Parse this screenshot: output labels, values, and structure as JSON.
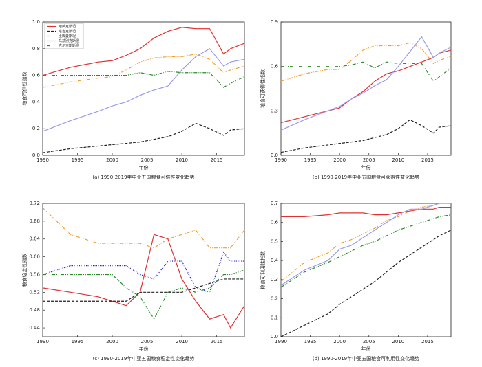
{
  "chart_data": [
    {
      "type": "line",
      "title": "(a) 1990-2019年中亚五国粮食可供性变化趋势",
      "xlabel": "年份",
      "ylabel": "粮食可供性指数",
      "legend": "upper left",
      "x": [
        1990,
        1994,
        1998,
        2000,
        2002,
        2004,
        2006,
        2008,
        2010,
        2012,
        2014,
        2016,
        2017,
        2019
      ],
      "xlim": [
        1990,
        2019
      ],
      "xticks": [
        1990,
        1995,
        2000,
        2005,
        2010,
        2015
      ],
      "ylim": [
        0,
        1
      ],
      "yticks": [
        {
          "value": 0,
          "label": "0.0"
        },
        0.2,
        0.4,
        0.6,
        0.8,
        {
          "value": 1,
          "label": "1.0"
        }
      ],
      "series": [
        {
          "name": "哈萨克斯坦",
          "color": "#e03030",
          "style": "solid",
          "values": [
            0.6,
            0.66,
            0.7,
            0.71,
            0.75,
            0.8,
            0.88,
            0.93,
            0.96,
            0.95,
            0.95,
            0.76,
            0.8,
            0.84
          ]
        },
        {
          "name": "塔吉克斯坦",
          "color": "#222222",
          "style": "dashed",
          "values": [
            0.02,
            0.05,
            0.07,
            0.08,
            0.09,
            0.1,
            0.12,
            0.14,
            0.18,
            0.24,
            0.2,
            0.15,
            0.19,
            0.2
          ]
        },
        {
          "name": "土库曼斯坦",
          "color": "#f0a030",
          "style": "dashdot",
          "values": [
            0.51,
            0.55,
            0.58,
            0.59,
            0.64,
            0.7,
            0.73,
            0.74,
            0.74,
            0.76,
            0.72,
            0.62,
            0.64,
            0.67
          ]
        },
        {
          "name": "乌兹别克斯坦",
          "color": "#9999ee",
          "style": "solid",
          "values": [
            0.18,
            0.26,
            0.33,
            0.37,
            0.4,
            0.45,
            0.49,
            0.52,
            0.64,
            0.74,
            0.8,
            0.67,
            0.7,
            0.72
          ]
        },
        {
          "name": "吉尔吉斯斯坦",
          "color": "#2a8a2a",
          "style": "dashdot",
          "values": [
            0.6,
            0.6,
            0.6,
            0.6,
            0.6,
            0.62,
            0.6,
            0.63,
            0.62,
            0.62,
            0.62,
            0.51,
            0.54,
            0.59
          ]
        }
      ]
    },
    {
      "type": "line",
      "title": "(b) 1990-2019年中亚五国粮食可获得性变化趋势",
      "xlabel": "年份",
      "ylabel": "粮食可获得性指数",
      "x": [
        1990,
        1994,
        1998,
        2000,
        2002,
        2004,
        2006,
        2008,
        2010,
        2012,
        2014,
        2016,
        2017,
        2019
      ],
      "xlim": [
        1990,
        2019
      ],
      "xticks": [
        1990,
        1995,
        2000,
        2005,
        2010,
        2015
      ],
      "ylim": [
        0,
        0.9
      ],
      "yticks": [
        {
          "value": 0,
          "label": "0.0"
        },
        0.3,
        0.6,
        0.9
      ],
      "series": [
        {
          "color": "#e03030",
          "style": "solid",
          "values": [
            0.22,
            0.26,
            0.3,
            0.32,
            0.38,
            0.43,
            0.5,
            0.55,
            0.57,
            0.6,
            0.63,
            0.66,
            0.69,
            0.71
          ]
        },
        {
          "color": "#222222",
          "style": "dashed",
          "values": [
            0.02,
            0.05,
            0.07,
            0.08,
            0.09,
            0.1,
            0.12,
            0.14,
            0.18,
            0.24,
            0.2,
            0.15,
            0.19,
            0.2
          ]
        },
        {
          "color": "#f0a030",
          "style": "dashdot",
          "values": [
            0.5,
            0.55,
            0.58,
            0.58,
            0.64,
            0.71,
            0.74,
            0.74,
            0.74,
            0.76,
            0.72,
            0.62,
            0.64,
            0.67
          ]
        },
        {
          "color": "#9999ee",
          "style": "solid",
          "values": [
            0.17,
            0.24,
            0.3,
            0.33,
            0.38,
            0.42,
            0.47,
            0.51,
            0.6,
            0.7,
            0.8,
            0.66,
            0.69,
            0.73
          ]
        },
        {
          "color": "#2a8a2a",
          "style": "dashdot",
          "values": [
            0.6,
            0.6,
            0.6,
            0.6,
            0.61,
            0.63,
            0.59,
            0.63,
            0.62,
            0.62,
            0.62,
            0.5,
            0.53,
            0.59
          ]
        }
      ]
    },
    {
      "type": "line",
      "title": "(c) 1990-2019年中亚五国粮食稳定性变化趋势",
      "xlabel": "年份",
      "ylabel": "粮食稳定性指数",
      "x": [
        1990,
        1994,
        1998,
        2000,
        2002,
        2004,
        2006,
        2008,
        2010,
        2012,
        2014,
        2016,
        2017,
        2019
      ],
      "xlim": [
        1990,
        2019
      ],
      "xticks": [
        1990,
        1995,
        2000,
        2005,
        2010,
        2015
      ],
      "ylim": [
        0.42,
        0.72
      ],
      "yticks": [
        0.44,
        0.48,
        0.52,
        0.56,
        {
          "value": 0.6,
          "label": "0.60"
        },
        0.64,
        0.68,
        0.72
      ],
      "series": [
        {
          "color": "#e03030",
          "style": "solid",
          "values": [
            0.53,
            0.52,
            0.51,
            0.5,
            0.49,
            0.52,
            0.65,
            0.64,
            0.55,
            0.5,
            0.46,
            0.47,
            0.44,
            0.49
          ]
        },
        {
          "color": "#222222",
          "style": "dashed",
          "values": [
            0.5,
            0.5,
            0.5,
            0.5,
            0.5,
            0.52,
            0.52,
            0.52,
            0.52,
            0.53,
            0.54,
            0.55,
            0.55,
            0.55
          ]
        },
        {
          "color": "#f0a030",
          "style": "dashdot",
          "values": [
            0.71,
            0.65,
            0.63,
            0.63,
            0.63,
            0.63,
            0.62,
            0.64,
            0.65,
            0.66,
            0.62,
            0.62,
            0.62,
            0.66
          ]
        },
        {
          "color": "#2222cc",
          "style": "dotted",
          "values": [
            0.56,
            0.58,
            0.58,
            0.58,
            0.58,
            0.56,
            0.55,
            0.59,
            0.59,
            0.53,
            0.52,
            0.61,
            0.59,
            0.59
          ]
        },
        {
          "color": "#2a8a2a",
          "style": "dashdot",
          "values": [
            0.56,
            0.56,
            0.56,
            0.56,
            0.53,
            0.51,
            0.46,
            0.52,
            0.53,
            0.52,
            0.53,
            0.56,
            0.56,
            0.57
          ]
        }
      ]
    },
    {
      "type": "line",
      "title": "(d) 1990-2019年中亚五国粮食可利用性变化趋势",
      "xlabel": "年份",
      "ylabel": "粮食可利用性指数",
      "x": [
        1990,
        1994,
        1998,
        2000,
        2002,
        2004,
        2006,
        2008,
        2010,
        2012,
        2014,
        2016,
        2017,
        2019
      ],
      "xlim": [
        1990,
        2019
      ],
      "xticks": [
        1990,
        1995,
        2000,
        2005,
        2010,
        2015
      ],
      "ylim": [
        0,
        0.7
      ],
      "yticks": [
        {
          "value": 0,
          "label": "0.0"
        },
        0.1,
        0.2,
        0.3,
        0.4,
        0.5,
        0.6,
        0.7
      ],
      "series": [
        {
          "color": "#e03030",
          "style": "solid",
          "values": [
            0.63,
            0.63,
            0.64,
            0.65,
            0.65,
            0.65,
            0.64,
            0.64,
            0.65,
            0.66,
            0.67,
            0.67,
            0.68,
            0.68
          ]
        },
        {
          "color": "#222222",
          "style": "dashed",
          "values": [
            0,
            0.06,
            0.12,
            0.17,
            0.21,
            0.25,
            0.29,
            0.34,
            0.39,
            0.43,
            0.47,
            0.51,
            0.53,
            0.56
          ]
        },
        {
          "color": "#f0a030",
          "style": "dashdot",
          "values": [
            0.29,
            0.39,
            0.44,
            0.49,
            0.51,
            0.54,
            0.57,
            0.61,
            0.63,
            0.66,
            0.68,
            0.69,
            0.7,
            0.7
          ]
        },
        {
          "color": "#9999ee",
          "style": "solid",
          "values": [
            0.27,
            0.35,
            0.4,
            0.46,
            0.48,
            0.52,
            0.56,
            0.6,
            0.64,
            0.67,
            0.67,
            0.69,
            0.7,
            0.7
          ]
        },
        {
          "color": "#2a8a2a",
          "style": "dashdot",
          "values": [
            0.26,
            0.34,
            0.39,
            0.42,
            0.45,
            0.48,
            0.5,
            0.53,
            0.56,
            0.58,
            0.6,
            0.62,
            0.63,
            0.64
          ]
        }
      ]
    }
  ]
}
